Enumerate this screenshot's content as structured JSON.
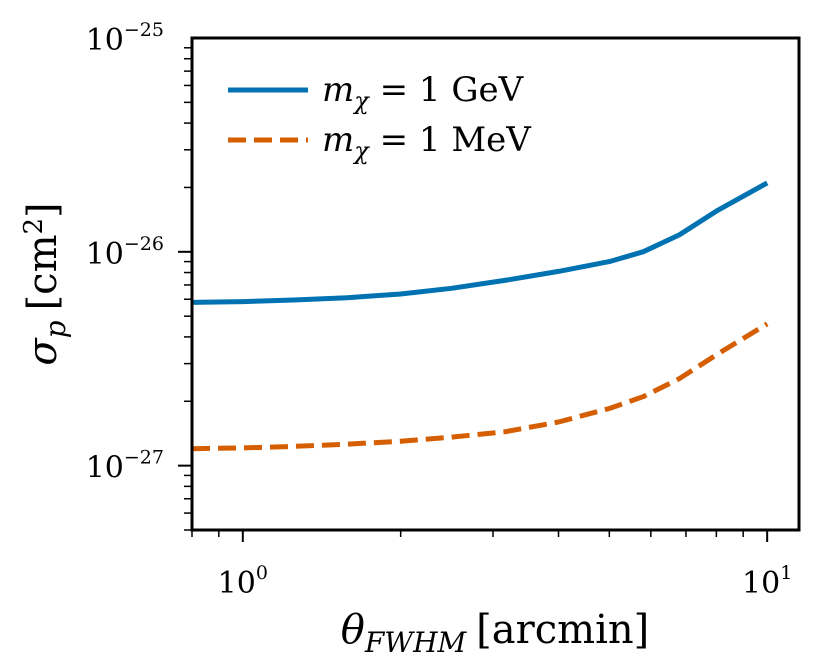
{
  "chart_data": {
    "type": "line",
    "xscale": "log",
    "yscale": "log",
    "xlim": [
      0.8,
      11.5
    ],
    "ylim": [
      5e-28,
      1e-25
    ],
    "x_ticks": [
      {
        "value": 1,
        "base": "10",
        "exp": "0"
      },
      {
        "value": 10,
        "base": "10",
        "exp": "1"
      }
    ],
    "y_ticks": [
      {
        "value": 1e-27,
        "base": "10",
        "exp": "−27"
      },
      {
        "value": 1e-26,
        "base": "10",
        "exp": "−26"
      },
      {
        "value": 1e-25,
        "base": "10",
        "exp": "−25"
      }
    ],
    "xlabel": {
      "symbol": "θ",
      "subscript": "FWHM",
      "unit": "[arcmin]"
    },
    "ylabel": {
      "symbol": "σ",
      "subscript": "p",
      "unit_open": "[cm",
      "unit_exp": "2",
      "unit_close": "]"
    },
    "legend_position": "upper-left",
    "series": [
      {
        "name": "m_chi = 1 GeV",
        "legend": {
          "symbol": "m",
          "subscript": "χ",
          "rest": " = 1 GeV"
        },
        "color": "#0072b2",
        "style": "solid",
        "x": [
          0.8,
          1.0,
          1.25,
          1.58,
          2.0,
          2.5,
          3.16,
          4.0,
          5.0,
          5.8,
          6.8,
          8.0,
          10.0
        ],
        "y": [
          5.8e-27,
          5.85e-27,
          5.95e-27,
          6.1e-27,
          6.35e-27,
          6.75e-27,
          7.35e-27,
          8.1e-27,
          9e-27,
          1e-26,
          1.2e-26,
          1.55e-26,
          2.1e-26
        ]
      },
      {
        "name": "m_chi = 1 MeV",
        "legend": {
          "symbol": "m",
          "subscript": "χ",
          "rest": " = 1 MeV"
        },
        "color": "#d55e00",
        "style": "dashed",
        "x": [
          0.8,
          1.0,
          1.25,
          1.58,
          2.0,
          2.5,
          3.16,
          4.0,
          5.0,
          5.8,
          6.8,
          8.0,
          10.0
        ],
        "y": [
          1.2e-27,
          1.21e-27,
          1.23e-27,
          1.26e-27,
          1.3e-27,
          1.36e-27,
          1.44e-27,
          1.6e-27,
          1.85e-27,
          2.1e-27,
          2.55e-27,
          3.3e-27,
          4.6e-27
        ]
      }
    ]
  }
}
